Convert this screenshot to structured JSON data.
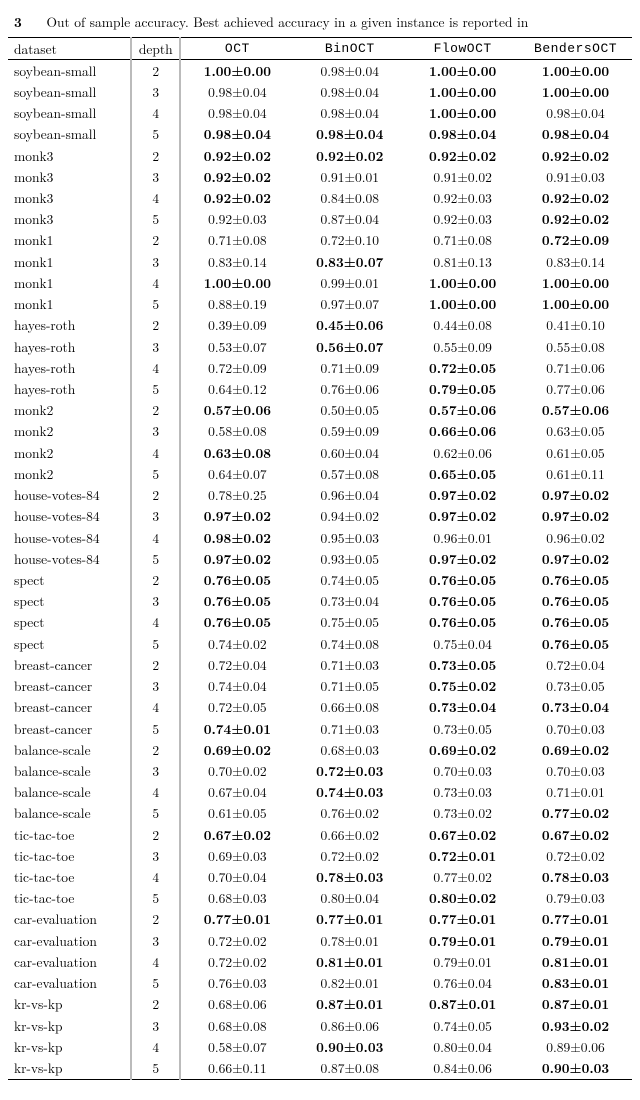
{
  "caption_prefix": "3",
  "caption_text": "Out of sample accuracy. Best achieved accuracy in a given instance is reported in",
  "columns": [
    {
      "key": "dataset",
      "label": "dataset",
      "mono": false
    },
    {
      "key": "depth",
      "label": "depth",
      "mono": false
    },
    {
      "key": "OCT",
      "label": "OCT",
      "mono": true
    },
    {
      "key": "BinOCT",
      "label": "BinOCT",
      "mono": true
    },
    {
      "key": "FlowOCT",
      "label": "FlowOCT",
      "mono": true
    },
    {
      "key": "BendersOCT",
      "label": "BendersOCT",
      "mono": true
    }
  ],
  "rows": [
    {
      "dataset": "soybean-small",
      "depth": "2",
      "cells": [
        {
          "v": "1.00±0.00",
          "b": true
        },
        {
          "v": "0.98±0.04",
          "b": false
        },
        {
          "v": "1.00±0.00",
          "b": true
        },
        {
          "v": "1.00±0.00",
          "b": true
        }
      ]
    },
    {
      "dataset": "soybean-small",
      "depth": "3",
      "cells": [
        {
          "v": "0.98±0.04",
          "b": false
        },
        {
          "v": "0.98±0.04",
          "b": false
        },
        {
          "v": "1.00±0.00",
          "b": true
        },
        {
          "v": "1.00±0.00",
          "b": true
        }
      ]
    },
    {
      "dataset": "soybean-small",
      "depth": "4",
      "cells": [
        {
          "v": "0.98±0.04",
          "b": false
        },
        {
          "v": "0.98±0.04",
          "b": false
        },
        {
          "v": "1.00±0.00",
          "b": true
        },
        {
          "v": "0.98±0.04",
          "b": false
        }
      ]
    },
    {
      "dataset": "soybean-small",
      "depth": "5",
      "cells": [
        {
          "v": "0.98±0.04",
          "b": true
        },
        {
          "v": "0.98±0.04",
          "b": true
        },
        {
          "v": "0.98±0.04",
          "b": true
        },
        {
          "v": "0.98±0.04",
          "b": true
        }
      ]
    },
    {
      "dataset": "monk3",
      "depth": "2",
      "cells": [
        {
          "v": "0.92±0.02",
          "b": true
        },
        {
          "v": "0.92±0.02",
          "b": true
        },
        {
          "v": "0.92±0.02",
          "b": true
        },
        {
          "v": "0.92±0.02",
          "b": true
        }
      ]
    },
    {
      "dataset": "monk3",
      "depth": "3",
      "cells": [
        {
          "v": "0.92±0.02",
          "b": true
        },
        {
          "v": "0.91±0.01",
          "b": false
        },
        {
          "v": "0.91±0.02",
          "b": false
        },
        {
          "v": "0.91±0.03",
          "b": false
        }
      ]
    },
    {
      "dataset": "monk3",
      "depth": "4",
      "cells": [
        {
          "v": "0.92±0.02",
          "b": true
        },
        {
          "v": "0.84±0.08",
          "b": false
        },
        {
          "v": "0.92±0.03",
          "b": false
        },
        {
          "v": "0.92±0.02",
          "b": true
        }
      ]
    },
    {
      "dataset": "monk3",
      "depth": "5",
      "cells": [
        {
          "v": "0.92±0.03",
          "b": false
        },
        {
          "v": "0.87±0.04",
          "b": false
        },
        {
          "v": "0.92±0.03",
          "b": false
        },
        {
          "v": "0.92±0.02",
          "b": true
        }
      ]
    },
    {
      "dataset": "monk1",
      "depth": "2",
      "cells": [
        {
          "v": "0.71±0.08",
          "b": false
        },
        {
          "v": "0.72±0.10",
          "b": false
        },
        {
          "v": "0.71±0.08",
          "b": false
        },
        {
          "v": "0.72±0.09",
          "b": true
        }
      ]
    },
    {
      "dataset": "monk1",
      "depth": "3",
      "cells": [
        {
          "v": "0.83±0.14",
          "b": false
        },
        {
          "v": "0.83±0.07",
          "b": true
        },
        {
          "v": "0.81±0.13",
          "b": false
        },
        {
          "v": "0.83±0.14",
          "b": false
        }
      ]
    },
    {
      "dataset": "monk1",
      "depth": "4",
      "cells": [
        {
          "v": "1.00±0.00",
          "b": true
        },
        {
          "v": "0.99±0.01",
          "b": false
        },
        {
          "v": "1.00±0.00",
          "b": true
        },
        {
          "v": "1.00±0.00",
          "b": true
        }
      ]
    },
    {
      "dataset": "monk1",
      "depth": "5",
      "cells": [
        {
          "v": "0.88±0.19",
          "b": false
        },
        {
          "v": "0.97±0.07",
          "b": false
        },
        {
          "v": "1.00±0.00",
          "b": true
        },
        {
          "v": "1.00±0.00",
          "b": true
        }
      ]
    },
    {
      "dataset": "hayes-roth",
      "depth": "2",
      "cells": [
        {
          "v": "0.39±0.09",
          "b": false
        },
        {
          "v": "0.45±0.06",
          "b": true
        },
        {
          "v": "0.44±0.08",
          "b": false
        },
        {
          "v": "0.41±0.10",
          "b": false
        }
      ]
    },
    {
      "dataset": "hayes-roth",
      "depth": "3",
      "cells": [
        {
          "v": "0.53±0.07",
          "b": false
        },
        {
          "v": "0.56±0.07",
          "b": true
        },
        {
          "v": "0.55±0.09",
          "b": false
        },
        {
          "v": "0.55±0.08",
          "b": false
        }
      ]
    },
    {
      "dataset": "hayes-roth",
      "depth": "4",
      "cells": [
        {
          "v": "0.72±0.09",
          "b": false
        },
        {
          "v": "0.71±0.09",
          "b": false
        },
        {
          "v": "0.72±0.05",
          "b": true
        },
        {
          "v": "0.71±0.06",
          "b": false
        }
      ]
    },
    {
      "dataset": "hayes-roth",
      "depth": "5",
      "cells": [
        {
          "v": "0.64±0.12",
          "b": false
        },
        {
          "v": "0.76±0.06",
          "b": false
        },
        {
          "v": "0.79±0.05",
          "b": true
        },
        {
          "v": "0.77±0.06",
          "b": false
        }
      ]
    },
    {
      "dataset": "monk2",
      "depth": "2",
      "cells": [
        {
          "v": "0.57±0.06",
          "b": true
        },
        {
          "v": "0.50±0.05",
          "b": false
        },
        {
          "v": "0.57±0.06",
          "b": true
        },
        {
          "v": "0.57±0.06",
          "b": true
        }
      ]
    },
    {
      "dataset": "monk2",
      "depth": "3",
      "cells": [
        {
          "v": "0.58±0.08",
          "b": false
        },
        {
          "v": "0.59±0.09",
          "b": false
        },
        {
          "v": "0.66±0.06",
          "b": true
        },
        {
          "v": "0.63±0.05",
          "b": false
        }
      ]
    },
    {
      "dataset": "monk2",
      "depth": "4",
      "cells": [
        {
          "v": "0.63±0.08",
          "b": true
        },
        {
          "v": "0.60±0.04",
          "b": false
        },
        {
          "v": "0.62±0.06",
          "b": false
        },
        {
          "v": "0.61±0.05",
          "b": false
        }
      ]
    },
    {
      "dataset": "monk2",
      "depth": "5",
      "cells": [
        {
          "v": "0.64±0.07",
          "b": false
        },
        {
          "v": "0.57±0.08",
          "b": false
        },
        {
          "v": "0.65±0.05",
          "b": true
        },
        {
          "v": "0.61±0.11",
          "b": false
        }
      ]
    },
    {
      "dataset": "house-votes-84",
      "depth": "2",
      "cells": [
        {
          "v": "0.78±0.25",
          "b": false
        },
        {
          "v": "0.96±0.04",
          "b": false
        },
        {
          "v": "0.97±0.02",
          "b": true
        },
        {
          "v": "0.97±0.02",
          "b": true
        }
      ]
    },
    {
      "dataset": "house-votes-84",
      "depth": "3",
      "cells": [
        {
          "v": "0.97±0.02",
          "b": true
        },
        {
          "v": "0.94±0.02",
          "b": false
        },
        {
          "v": "0.97±0.02",
          "b": true
        },
        {
          "v": "0.97±0.02",
          "b": true
        }
      ]
    },
    {
      "dataset": "house-votes-84",
      "depth": "4",
      "cells": [
        {
          "v": "0.98±0.02",
          "b": true
        },
        {
          "v": "0.95±0.03",
          "b": false
        },
        {
          "v": "0.96±0.01",
          "b": false
        },
        {
          "v": "0.96±0.02",
          "b": false
        }
      ]
    },
    {
      "dataset": "house-votes-84",
      "depth": "5",
      "cells": [
        {
          "v": "0.97±0.02",
          "b": true
        },
        {
          "v": "0.93±0.05",
          "b": false
        },
        {
          "v": "0.97±0.02",
          "b": true
        },
        {
          "v": "0.97±0.02",
          "b": true
        }
      ]
    },
    {
      "dataset": "spect",
      "depth": "2",
      "cells": [
        {
          "v": "0.76±0.05",
          "b": true
        },
        {
          "v": "0.74±0.05",
          "b": false
        },
        {
          "v": "0.76±0.05",
          "b": true
        },
        {
          "v": "0.76±0.05",
          "b": true
        }
      ]
    },
    {
      "dataset": "spect",
      "depth": "3",
      "cells": [
        {
          "v": "0.76±0.05",
          "b": true
        },
        {
          "v": "0.73±0.04",
          "b": false
        },
        {
          "v": "0.76±0.05",
          "b": true
        },
        {
          "v": "0.76±0.05",
          "b": true
        }
      ]
    },
    {
      "dataset": "spect",
      "depth": "4",
      "cells": [
        {
          "v": "0.76±0.05",
          "b": true
        },
        {
          "v": "0.75±0.05",
          "b": false
        },
        {
          "v": "0.76±0.05",
          "b": true
        },
        {
          "v": "0.76±0.05",
          "b": true
        }
      ]
    },
    {
      "dataset": "spect",
      "depth": "5",
      "cells": [
        {
          "v": "0.74±0.02",
          "b": false
        },
        {
          "v": "0.74±0.08",
          "b": false
        },
        {
          "v": "0.75±0.04",
          "b": false
        },
        {
          "v": "0.76±0.05",
          "b": true
        }
      ]
    },
    {
      "dataset": "breast-cancer",
      "depth": "2",
      "cells": [
        {
          "v": "0.72±0.04",
          "b": false
        },
        {
          "v": "0.71±0.03",
          "b": false
        },
        {
          "v": "0.73±0.05",
          "b": true
        },
        {
          "v": "0.72±0.04",
          "b": false
        }
      ]
    },
    {
      "dataset": "breast-cancer",
      "depth": "3",
      "cells": [
        {
          "v": "0.74±0.04",
          "b": false
        },
        {
          "v": "0.71±0.05",
          "b": false
        },
        {
          "v": "0.75±0.02",
          "b": true
        },
        {
          "v": "0.73±0.05",
          "b": false
        }
      ]
    },
    {
      "dataset": "breast-cancer",
      "depth": "4",
      "cells": [
        {
          "v": "0.72±0.05",
          "b": false
        },
        {
          "v": "0.66±0.08",
          "b": false
        },
        {
          "v": "0.73±0.04",
          "b": true
        },
        {
          "v": "0.73±0.04",
          "b": true
        }
      ]
    },
    {
      "dataset": "breast-cancer",
      "depth": "5",
      "cells": [
        {
          "v": "0.74±0.01",
          "b": true
        },
        {
          "v": "0.71±0.03",
          "b": false
        },
        {
          "v": "0.73±0.05",
          "b": false
        },
        {
          "v": "0.70±0.03",
          "b": false
        }
      ]
    },
    {
      "dataset": "balance-scale",
      "depth": "2",
      "cells": [
        {
          "v": "0.69±0.02",
          "b": true
        },
        {
          "v": "0.68±0.03",
          "b": false
        },
        {
          "v": "0.69±0.02",
          "b": true
        },
        {
          "v": "0.69±0.02",
          "b": true
        }
      ]
    },
    {
      "dataset": "balance-scale",
      "depth": "3",
      "cells": [
        {
          "v": "0.70±0.02",
          "b": false
        },
        {
          "v": "0.72±0.03",
          "b": true
        },
        {
          "v": "0.70±0.03",
          "b": false
        },
        {
          "v": "0.70±0.03",
          "b": false
        }
      ]
    },
    {
      "dataset": "balance-scale",
      "depth": "4",
      "cells": [
        {
          "v": "0.67±0.04",
          "b": false
        },
        {
          "v": "0.74±0.03",
          "b": true
        },
        {
          "v": "0.73±0.03",
          "b": false
        },
        {
          "v": "0.71±0.01",
          "b": false
        }
      ]
    },
    {
      "dataset": "balance-scale",
      "depth": "5",
      "cells": [
        {
          "v": "0.61±0.05",
          "b": false
        },
        {
          "v": "0.76±0.02",
          "b": false
        },
        {
          "v": "0.73±0.02",
          "b": false
        },
        {
          "v": "0.77±0.02",
          "b": true
        }
      ]
    },
    {
      "dataset": "tic-tac-toe",
      "depth": "2",
      "cells": [
        {
          "v": "0.67±0.02",
          "b": true
        },
        {
          "v": "0.66±0.02",
          "b": false
        },
        {
          "v": "0.67±0.02",
          "b": true
        },
        {
          "v": "0.67±0.02",
          "b": true
        }
      ]
    },
    {
      "dataset": "tic-tac-toe",
      "depth": "3",
      "cells": [
        {
          "v": "0.69±0.03",
          "b": false
        },
        {
          "v": "0.72±0.02",
          "b": false
        },
        {
          "v": "0.72±0.01",
          "b": true
        },
        {
          "v": "0.72±0.02",
          "b": false
        }
      ]
    },
    {
      "dataset": "tic-tac-toe",
      "depth": "4",
      "cells": [
        {
          "v": "0.70±0.04",
          "b": false
        },
        {
          "v": "0.78±0.03",
          "b": true
        },
        {
          "v": "0.77±0.02",
          "b": false
        },
        {
          "v": "0.78±0.03",
          "b": true
        }
      ]
    },
    {
      "dataset": "tic-tac-toe",
      "depth": "5",
      "cells": [
        {
          "v": "0.68±0.03",
          "b": false
        },
        {
          "v": "0.80±0.04",
          "b": false
        },
        {
          "v": "0.80±0.02",
          "b": true
        },
        {
          "v": "0.79±0.03",
          "b": false
        }
      ]
    },
    {
      "dataset": "car-evaluation",
      "depth": "2",
      "cells": [
        {
          "v": "0.77±0.01",
          "b": true
        },
        {
          "v": "0.77±0.01",
          "b": true
        },
        {
          "v": "0.77±0.01",
          "b": true
        },
        {
          "v": "0.77±0.01",
          "b": true
        }
      ]
    },
    {
      "dataset": "car-evaluation",
      "depth": "3",
      "cells": [
        {
          "v": "0.72±0.02",
          "b": false
        },
        {
          "v": "0.78±0.01",
          "b": false
        },
        {
          "v": "0.79±0.01",
          "b": true
        },
        {
          "v": "0.79±0.01",
          "b": true
        }
      ]
    },
    {
      "dataset": "car-evaluation",
      "depth": "4",
      "cells": [
        {
          "v": "0.72±0.02",
          "b": false
        },
        {
          "v": "0.81±0.01",
          "b": true
        },
        {
          "v": "0.79±0.01",
          "b": false
        },
        {
          "v": "0.81±0.01",
          "b": true
        }
      ]
    },
    {
      "dataset": "car-evaluation",
      "depth": "5",
      "cells": [
        {
          "v": "0.76±0.03",
          "b": false
        },
        {
          "v": "0.82±0.01",
          "b": false
        },
        {
          "v": "0.76±0.04",
          "b": false
        },
        {
          "v": "0.83±0.01",
          "b": true
        }
      ]
    },
    {
      "dataset": "kr-vs-kp",
      "depth": "2",
      "cells": [
        {
          "v": "0.68±0.06",
          "b": false
        },
        {
          "v": "0.87±0.01",
          "b": true
        },
        {
          "v": "0.87±0.01",
          "b": true
        },
        {
          "v": "0.87±0.01",
          "b": true
        }
      ]
    },
    {
      "dataset": "kr-vs-kp",
      "depth": "3",
      "cells": [
        {
          "v": "0.68±0.08",
          "b": false
        },
        {
          "v": "0.86±0.06",
          "b": false
        },
        {
          "v": "0.74±0.05",
          "b": false
        },
        {
          "v": "0.93±0.02",
          "b": true
        }
      ]
    },
    {
      "dataset": "kr-vs-kp",
      "depth": "4",
      "cells": [
        {
          "v": "0.58±0.07",
          "b": false
        },
        {
          "v": "0.90±0.03",
          "b": true
        },
        {
          "v": "0.80±0.04",
          "b": false
        },
        {
          "v": "0.89±0.06",
          "b": false
        }
      ]
    },
    {
      "dataset": "kr-vs-kp",
      "depth": "5",
      "cells": [
        {
          "v": "0.66±0.11",
          "b": false
        },
        {
          "v": "0.87±0.08",
          "b": false
        },
        {
          "v": "0.84±0.06",
          "b": false
        },
        {
          "v": "0.90±0.03",
          "b": true
        }
      ]
    }
  ]
}
